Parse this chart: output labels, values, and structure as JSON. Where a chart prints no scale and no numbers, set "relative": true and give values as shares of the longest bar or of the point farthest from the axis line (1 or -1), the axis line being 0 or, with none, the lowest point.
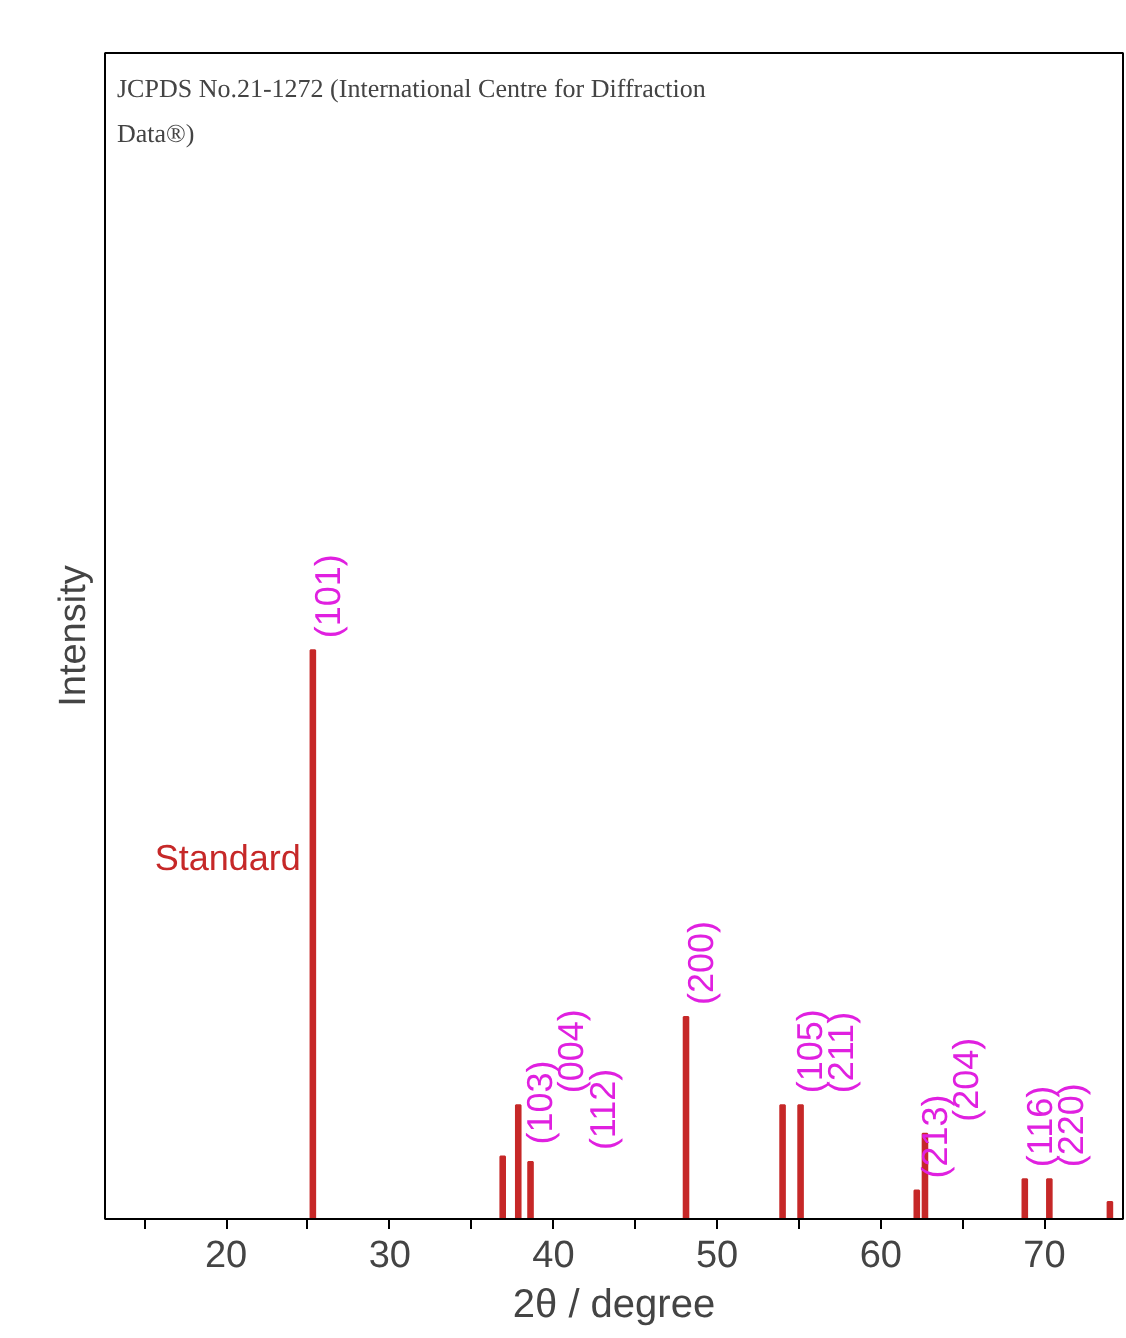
{
  "chart_data": {
    "type": "bar",
    "relative": true,
    "xlabel": "2θ / degree",
    "ylabel": "Intensity",
    "x": [
      25.3,
      36.9,
      37.85,
      38.6,
      48.1,
      54.0,
      55.1,
      62.2,
      62.7,
      68.8,
      70.3,
      74.0
    ],
    "series": [
      {
        "name": "Standard",
        "color": "#c62828",
        "values": [
          1.0,
          0.11,
          0.2,
          0.1,
          0.355,
          0.2,
          0.2,
          0.05,
          0.15,
          0.07,
          0.07,
          0.03
        ]
      }
    ],
    "xlim": [
      12.6,
      74.8
    ],
    "xticks": [
      {
        "value": 15,
        "label": null
      },
      20,
      {
        "value": 25,
        "label": null
      },
      30,
      {
        "value": 35,
        "label": null
      },
      40,
      {
        "value": 45,
        "label": null
      },
      50,
      {
        "value": 55,
        "label": null
      },
      60,
      {
        "value": 65,
        "label": null
      },
      70
    ],
    "grid": false,
    "legend": false,
    "annotations": [
      "JCPDS No.21-1272 (International Centre for Diffraction Data®)",
      {
        "text": "(101)",
        "x": 25.3,
        "y": 1.0
      },
      {
        "text": "(103)",
        "x": 36.9,
        "y": 0.11
      },
      {
        "text": "(004)",
        "x": 37.85,
        "y": 0.2
      },
      {
        "text": "(112)",
        "x": 38.6,
        "y": 0.1
      },
      {
        "text": "(200)",
        "x": 48.1,
        "y": 0.355
      },
      {
        "text": "(105)",
        "x": 54.0,
        "y": 0.2
      },
      {
        "text": "(211)",
        "x": 55.1,
        "y": 0.2
      },
      {
        "text": "(213)",
        "x": 62.2,
        "y": 0.05
      },
      {
        "text": "(204)",
        "x": 62.7,
        "y": 0.15
      },
      {
        "text": "(116)",
        "x": 68.8,
        "y": 0.07
      },
      {
        "text": "(220)",
        "x": 70.3,
        "y": 0.07
      }
    ]
  }
}
